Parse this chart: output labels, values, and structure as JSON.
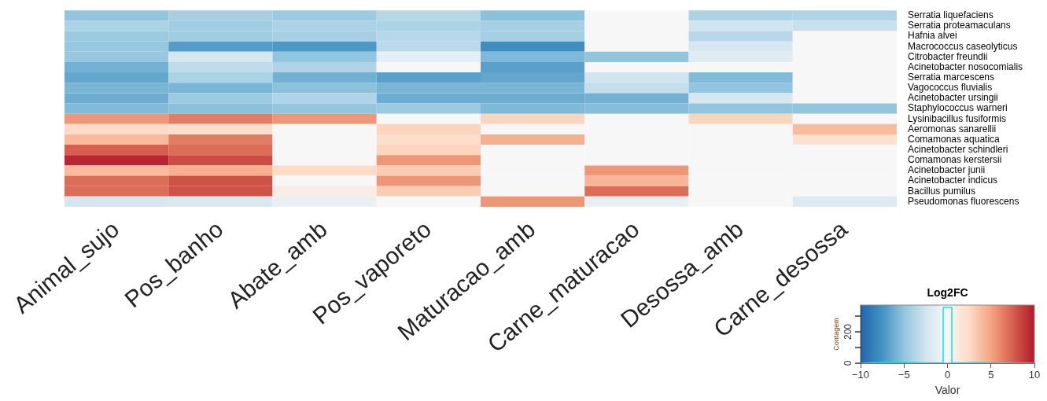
{
  "chart_data": [
    {
      "type": "heatmap",
      "categories": [
        "Animal_sujo",
        "Pos_banho",
        "Abate_amb",
        "Pos_vaporeto",
        "Maturacao_amb",
        "Carne_maturacao",
        "Desossa_amb",
        "Carne_desossa"
      ],
      "y_categories": [
        "Serratia liquefaciens",
        "Serratia proteamaculans",
        "Hafnia alvei",
        "Macrococcus caseolyticus",
        "Citrobacter freundii",
        "Acinetobacter nosocomialis",
        "Serratia marcescens",
        "Vagococcus fluvialis",
        "Acinetobacter ursingii",
        "Staphylococcus warneri",
        "Lysinibacillus fusiformis",
        "Aeromonas sanarellii",
        "Comamonas aquatica",
        "Acinetobacter schindleri",
        "Comamonas kerstersii",
        "Acinetobacter junii",
        "Acinetobacter indicus",
        "Bacillus pumilus",
        "Pseudomonas fluorescens"
      ],
      "cells": [
        [
          -5,
          -4.2,
          -4.6,
          -3.6,
          -5.2,
          0,
          -4,
          -3.8
        ],
        [
          -4,
          -4.4,
          -4,
          -4,
          -4.2,
          0,
          -2.5,
          -2.8
        ],
        [
          -4.6,
          -4.4,
          -4.2,
          -3.6,
          -4.2,
          0,
          -3.5,
          0
        ],
        [
          -4.8,
          -7,
          -7.2,
          -3.4,
          -7.8,
          0,
          -2.2,
          0
        ],
        [
          -4.8,
          -2.2,
          -5,
          -1.2,
          -5.6,
          -5,
          -1.5,
          0
        ],
        [
          -6,
          -3.2,
          -3.8,
          0,
          -6.8,
          0,
          0,
          0
        ],
        [
          -6.5,
          -4,
          -6,
          -6.8,
          -6.5,
          -2.5,
          -5.5,
          0
        ],
        [
          -5.8,
          -5.8,
          -5.2,
          -5.8,
          -5.8,
          -3,
          -5,
          0
        ],
        [
          -6.2,
          -4.6,
          -3.8,
          -6.2,
          -6.2,
          -6,
          -2.2,
          0
        ],
        [
          -5.5,
          -5.2,
          -5,
          -4.6,
          -5.6,
          -5.4,
          -5,
          -5
        ],
        [
          5.5,
          6.5,
          5.5,
          0,
          2.8,
          0,
          2.8,
          0
        ],
        [
          2.5,
          2.2,
          0,
          2.8,
          0,
          0,
          0,
          4
        ],
        [
          4,
          6.5,
          0,
          2.2,
          4.5,
          0,
          0,
          2
        ],
        [
          7.5,
          7,
          0,
          2.8,
          0,
          0,
          0,
          0
        ],
        [
          9.5,
          8.2,
          0,
          5.5,
          0,
          0,
          0,
          0
        ],
        [
          4,
          4.5,
          2.5,
          3.2,
          0,
          5.5,
          0,
          0
        ],
        [
          7,
          8,
          0,
          5.5,
          0,
          4.2,
          0,
          0
        ],
        [
          7,
          8,
          1,
          3.2,
          0,
          7,
          0,
          0
        ],
        [
          -2.2,
          -2,
          -1,
          0,
          5.5,
          -1,
          0,
          -1.8
        ]
      ],
      "clim": [
        -10,
        10
      ],
      "cticks": [
        -10,
        -5,
        0,
        5,
        10
      ],
      "clabel": "Valor",
      "legend_title": "Log2FC"
    },
    {
      "type": "step",
      "ylabel": "Contagem",
      "color": "#00e5ee",
      "categories": [
        null,
        null,
        null,
        null,
        null,
        null,
        null,
        null,
        null,
        null,
        null,
        null,
        null,
        null,
        null,
        null,
        null,
        null,
        null,
        null,
        null
      ],
      "values": [
        0,
        3,
        5,
        6,
        6,
        5,
        4,
        3,
        2,
        2,
        355,
        2,
        3,
        4,
        4,
        3,
        2,
        2,
        1,
        1,
        0
      ],
      "ylim": [
        0,
        370
      ],
      "yticks": [
        0,
        {
          "value": 100,
          "label": null
        },
        200,
        {
          "value": 300,
          "label": null
        }
      ],
      "tick_labels": "y"
    }
  ]
}
